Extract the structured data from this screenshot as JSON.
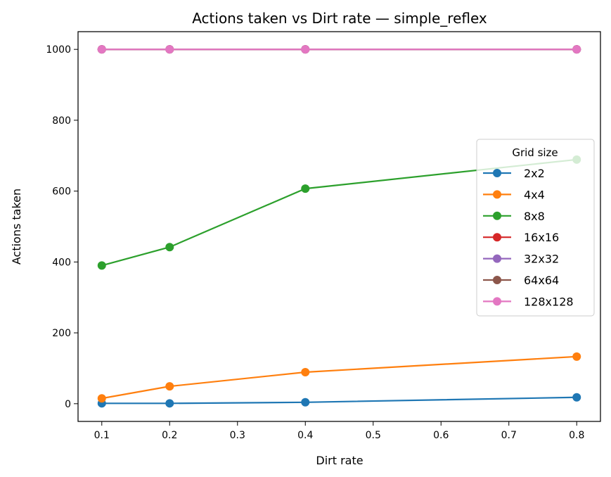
{
  "chart_data": {
    "type": "line",
    "title": "Actions taken vs Dirt rate — simple_reflex",
    "xlabel": "Dirt rate",
    "ylabel": "Actions taken",
    "xlim": [
      0.065,
      0.835
    ],
    "ylim": [
      -50,
      1050
    ],
    "xticks": [
      "0.1",
      "0.2",
      "0.3",
      "0.4",
      "0.5",
      "0.6",
      "0.7",
      "0.8"
    ],
    "yticks": [
      "0",
      "200",
      "400",
      "600",
      "800",
      "1000"
    ],
    "x": [
      0.1,
      0.2,
      0.4,
      0.8
    ],
    "grid": false,
    "legend": {
      "title": "Grid size",
      "placement": "center-right"
    },
    "series": [
      {
        "name": "2x2",
        "color": "#1f77b4",
        "values": [
          1,
          1,
          4,
          18
        ]
      },
      {
        "name": "4x4",
        "color": "#ff7f0e",
        "values": [
          15,
          49,
          89,
          133
        ]
      },
      {
        "name": "8x8",
        "color": "#2ca02c",
        "values": [
          390,
          442,
          607,
          689
        ]
      },
      {
        "name": "16x16",
        "color": "#d62728",
        "values": [
          1000,
          1000,
          1000,
          1000
        ]
      },
      {
        "name": "32x32",
        "color": "#9467bd",
        "values": [
          1000,
          1000,
          1000,
          1000
        ]
      },
      {
        "name": "64x64",
        "color": "#8c564b",
        "values": [
          1000,
          1000,
          1000,
          1000
        ]
      },
      {
        "name": "128x128",
        "color": "#e377c2",
        "values": [
          1000,
          1000,
          1000,
          1000
        ]
      }
    ]
  }
}
